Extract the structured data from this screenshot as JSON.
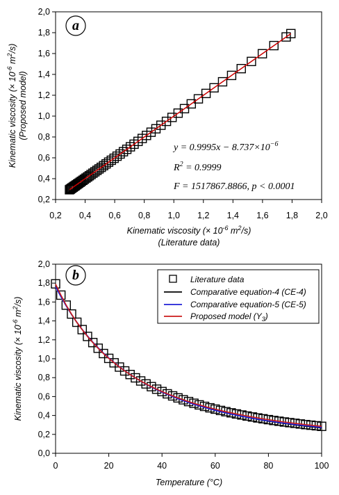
{
  "chart_data": [
    {
      "type": "scatter",
      "panel": "a",
      "xlabel": "Kinematic viscosity (× 10-6 m2/s)",
      "xlabel_line1": "Kinematic viscosity (× 10",
      "xlabel_exp": "-6",
      "xlabel_mid": " m",
      "xlabel_sq": "2",
      "xlabel_end": "/s)",
      "xlabel_line2": "(Literature data)",
      "ylabel": "Kinematic viscosity (× 10-6 m2/s)",
      "ylabel_line1": "Kinematic viscosity (× 10",
      "ylabel_exp": "-6",
      "ylabel_mid": " m",
      "ylabel_sq": "2",
      "ylabel_end": "/s)",
      "ylabel_line2": "(Proposed model)",
      "xlim": [
        0.2,
        2.0
      ],
      "ylim": [
        0.2,
        2.0
      ],
      "xticks": [
        "0,2",
        "0,4",
        "0,6",
        "0,8",
        "1,0",
        "1,2",
        "1,4",
        "1,6",
        "1,8",
        "2,0"
      ],
      "yticks": [
        "0,2",
        "0,4",
        "0,6",
        "0,8",
        "1,0",
        "1,2",
        "1,4",
        "1,6",
        "1,8",
        "2,0"
      ],
      "points_x": [
        0.294,
        0.3,
        0.306,
        0.312,
        0.319,
        0.326,
        0.333,
        0.341,
        0.349,
        0.357,
        0.366,
        0.375,
        0.385,
        0.395,
        0.406,
        0.417,
        0.428,
        0.44,
        0.453,
        0.466,
        0.48,
        0.494,
        0.509,
        0.525,
        0.542,
        0.559,
        0.577,
        0.596,
        0.616,
        0.637,
        0.659,
        0.682,
        0.706,
        0.731,
        0.758,
        0.786,
        0.815,
        0.846,
        0.879,
        0.913,
        0.95,
        0.988,
        1.029,
        1.072,
        1.118,
        1.166,
        1.218,
        1.272,
        1.33,
        1.391,
        1.456,
        1.525,
        1.599,
        1.677,
        1.76,
        1.792
      ],
      "series": [
        {
          "name": "Points",
          "marker": "square",
          "color": "#000000"
        },
        {
          "name": "Fit",
          "color": "#cc0000"
        }
      ],
      "fit": {
        "slope": 0.9995,
        "intercept": -8.737e-06
      },
      "annotations": {
        "eq1_a": "y = 0.9995x − 8.737×10",
        "eq1_exp": "−6",
        "eq2_a": "R",
        "eq2_sq": "2",
        "eq2_b": " = 0.9999",
        "eq3": "F = 1517867.8866, p < 0.0001"
      }
    },
    {
      "type": "line",
      "panel": "b",
      "xlabel": "Temperature (°C)",
      "ylabel": "Kinematic viscosity (× 10-6 m2/s)",
      "ylabel_line1": "Kinematic viscosity (× 10",
      "ylabel_exp": "-6",
      "ylabel_mid": " m",
      "ylabel_sq": "2",
      "ylabel_end": "/s)",
      "xlim": [
        0,
        100
      ],
      "ylim": [
        0,
        2.0
      ],
      "xticks": [
        "0",
        "20",
        "40",
        "60",
        "80",
        "100"
      ],
      "yticks": [
        "0,0",
        "0,2",
        "0,4",
        "0,6",
        "0,8",
        "1,0",
        "1,2",
        "1,4",
        "1,6",
        "1,8",
        "2,0"
      ],
      "x": [
        0,
        2,
        4,
        6,
        8,
        10,
        12,
        14,
        16,
        18,
        20,
        22,
        24,
        26,
        28,
        30,
        32,
        34,
        36,
        38,
        40,
        42,
        44,
        46,
        48,
        50,
        52,
        54,
        56,
        58,
        60,
        62,
        64,
        66,
        68,
        70,
        72,
        74,
        76,
        78,
        80,
        82,
        84,
        86,
        88,
        90,
        92,
        94,
        96,
        98,
        100
      ],
      "series": [
        {
          "name": "Literature data",
          "marker": "square",
          "color": "#000000",
          "values": [
            1.792,
            1.673,
            1.567,
            1.473,
            1.386,
            1.308,
            1.236,
            1.171,
            1.111,
            1.055,
            1.004,
            0.957,
            0.912,
            0.871,
            0.833,
            0.798,
            0.765,
            0.734,
            0.705,
            0.678,
            0.653,
            0.629,
            0.607,
            0.586,
            0.566,
            0.547,
            0.529,
            0.512,
            0.496,
            0.481,
            0.467,
            0.453,
            0.44,
            0.428,
            0.416,
            0.405,
            0.394,
            0.384,
            0.374,
            0.365,
            0.356,
            0.347,
            0.339,
            0.331,
            0.324,
            0.317,
            0.31,
            0.303,
            0.297,
            0.291,
            0.285
          ]
        },
        {
          "name": "Comparative equation-4 (CE-4)",
          "color": "#000000",
          "values": [
            1.77,
            1.66,
            1.56,
            1.468,
            1.384,
            1.307,
            1.236,
            1.171,
            1.111,
            1.056,
            1.005,
            0.957,
            0.913,
            0.872,
            0.833,
            0.797,
            0.763,
            0.732,
            0.702,
            0.675,
            0.649,
            0.624,
            0.601,
            0.579,
            0.559,
            0.539,
            0.521,
            0.503,
            0.487,
            0.471,
            0.456,
            0.441,
            0.428,
            0.415,
            0.403,
            0.391,
            0.38,
            0.369,
            0.359,
            0.349,
            0.34,
            0.331,
            0.323,
            0.315,
            0.307,
            0.3,
            0.293,
            0.286,
            0.28,
            0.274,
            0.268
          ]
        },
        {
          "name": "Comparative equation-5 (CE-5)",
          "color": "#1f1fd6",
          "values": [
            1.76,
            1.655,
            1.558,
            1.469,
            1.387,
            1.311,
            1.241,
            1.176,
            1.116,
            1.06,
            1.008,
            0.96,
            0.915,
            0.873,
            0.834,
            0.797,
            0.763,
            0.731,
            0.701,
            0.673,
            0.647,
            0.622,
            0.599,
            0.577,
            0.556,
            0.537,
            0.518,
            0.501,
            0.485,
            0.469,
            0.454,
            0.44,
            0.427,
            0.414,
            0.402,
            0.391,
            0.38,
            0.37,
            0.36,
            0.351,
            0.342,
            0.334,
            0.326,
            0.318,
            0.311,
            0.304,
            0.297,
            0.291,
            0.285,
            0.279,
            0.273
          ]
        },
        {
          "name": "Proposed model (Y3)",
          "name_main": "Proposed model (Y",
          "name_sub": "3",
          "name_end": ")",
          "color": "#cc1a1a",
          "values": [
            1.79,
            1.673,
            1.567,
            1.472,
            1.386,
            1.308,
            1.236,
            1.171,
            1.111,
            1.055,
            1.004,
            0.957,
            0.912,
            0.871,
            0.833,
            0.798,
            0.765,
            0.734,
            0.705,
            0.678,
            0.653,
            0.629,
            0.607,
            0.586,
            0.566,
            0.547,
            0.529,
            0.512,
            0.496,
            0.481,
            0.467,
            0.453,
            0.44,
            0.428,
            0.416,
            0.405,
            0.394,
            0.384,
            0.374,
            0.365,
            0.356,
            0.347,
            0.339,
            0.331,
            0.324,
            0.317,
            0.31,
            0.303,
            0.297,
            0.291,
            0.285
          ]
        }
      ],
      "legend_placement": "top-right"
    }
  ]
}
